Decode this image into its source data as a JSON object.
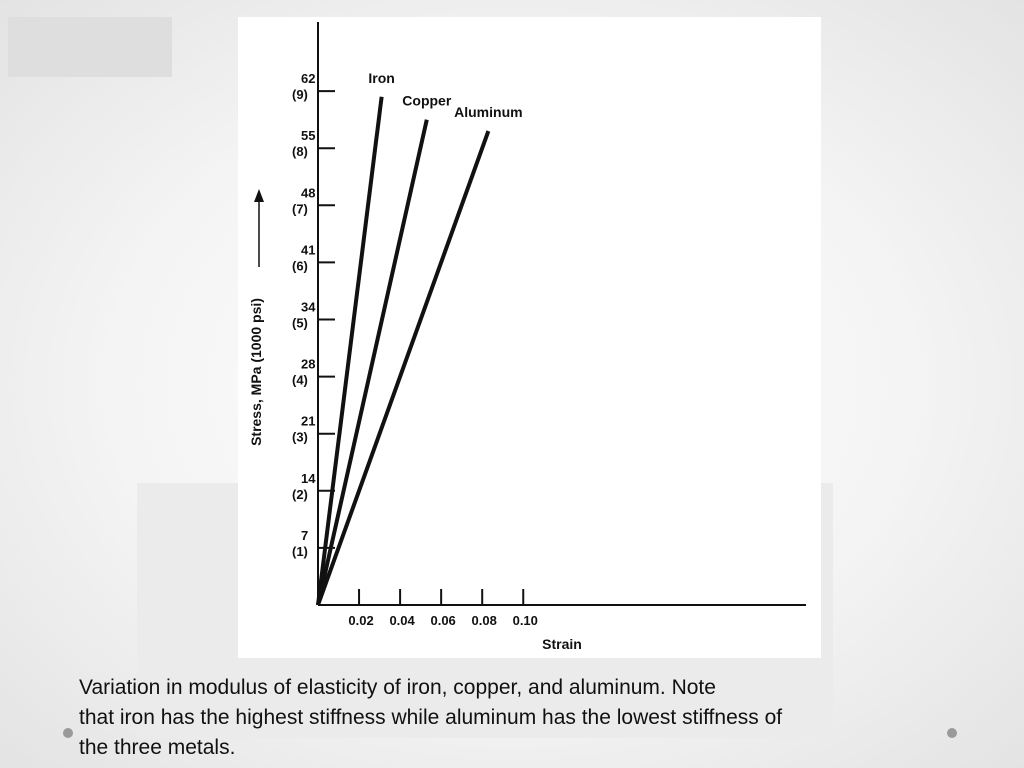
{
  "caption": {
    "line1": "Variation in modulus of elasticity of iron, copper, and aluminum. Note",
    "line2": "that iron has the highest stiffness while aluminum has the lowest stiffness of",
    "line3": "the three metals."
  },
  "chart_data": {
    "type": "line",
    "title": "",
    "xlabel": "Strain",
    "ylabel": "Stress, MPa (1000 psi)",
    "xlim": [
      0,
      0.12
    ],
    "ylim": [
      0,
      10
    ],
    "x_ticks": [
      {
        "value": 0.02,
        "label": "0.02"
      },
      {
        "value": 0.04,
        "label": "0.04"
      },
      {
        "value": 0.06,
        "label": "0.06"
      },
      {
        "value": 0.08,
        "label": "0.08"
      },
      {
        "value": 0.1,
        "label": "0.10"
      }
    ],
    "y_ticks": [
      {
        "value": 1,
        "mpa": "7",
        "psi": "(1)"
      },
      {
        "value": 2,
        "mpa": "14",
        "psi": "(2)"
      },
      {
        "value": 3,
        "mpa": "21",
        "psi": "(3)"
      },
      {
        "value": 4,
        "mpa": "28",
        "psi": "(4)"
      },
      {
        "value": 5,
        "mpa": "34",
        "psi": "(5)"
      },
      {
        "value": 6,
        "mpa": "41",
        "psi": "(6)"
      },
      {
        "value": 7,
        "mpa": "48",
        "psi": "(7)"
      },
      {
        "value": 8,
        "mpa": "55",
        "psi": "(8)"
      },
      {
        "value": 9,
        "mpa": "62",
        "psi": "(9)"
      }
    ],
    "series": [
      {
        "name": "Iron",
        "x": [
          0,
          0.031
        ],
        "y": [
          0,
          8.9
        ]
      },
      {
        "name": "Copper",
        "x": [
          0,
          0.053
        ],
        "y": [
          0,
          8.5
        ]
      },
      {
        "name": "Aluminum",
        "x": [
          0,
          0.083
        ],
        "y": [
          0,
          8.3
        ]
      }
    ],
    "grid": false,
    "legend": "none"
  },
  "colors": {
    "line": "#111111",
    "background": "#ffffff"
  }
}
